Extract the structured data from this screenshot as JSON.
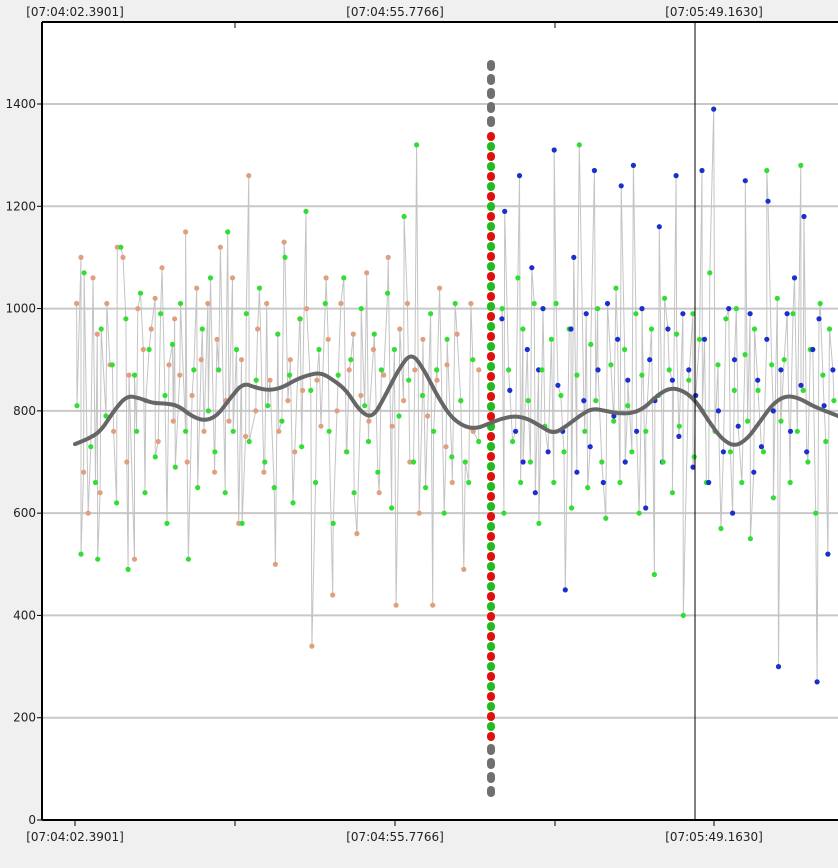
{
  "chart_data": {
    "type": "scatter",
    "title": "",
    "xlabel": "",
    "ylabel": "",
    "x_tick_labels": [
      "[07:04:02.3901]",
      "[07:04:55.7766]",
      "[07:05:49.1630]"
    ],
    "y_ticks": [
      0,
      200,
      400,
      600,
      800,
      1000,
      1200,
      1400
    ],
    "ylim": [
      0,
      1500
    ],
    "grid": true,
    "legend": "none",
    "marker_line_label": "[07:05:49.1630]",
    "series": [
      {
        "color": "#e0a080",
        "segment": "left",
        "y": [
          1010,
          1100,
          680,
          600,
          1060,
          950,
          640,
          1010,
          890,
          760,
          1120,
          1100,
          700,
          870,
          510,
          1000,
          920,
          820,
          960,
          1020,
          740,
          1080,
          890,
          780,
          980,
          870,
          1150,
          700,
          830,
          1040,
          900,
          760,
          1010,
          680,
          940,
          1120,
          820,
          780,
          1060,
          580,
          900,
          750,
          1260,
          800,
          960,
          680,
          1010,
          860,
          500,
          760,
          1130,
          820,
          900,
          720,
          980,
          840,
          1000,
          340,
          860,
          770,
          1060,
          940,
          440,
          800,
          1010,
          720,
          880,
          950,
          560,
          830,
          1070,
          780,
          920,
          640,
          870,
          1100,
          770,
          420,
          960,
          820,
          1010,
          700,
          880,
          600,
          940,
          790,
          420,
          860,
          1040,
          730,
          890,
          660,
          950,
          820,
          490,
          1010,
          760,
          880
        ]
      },
      {
        "color": "#33dd33",
        "segment": "left",
        "y": [
          810,
          520,
          1070,
          730,
          660,
          510,
          960,
          790,
          890,
          620,
          1120,
          980,
          490,
          870,
          760,
          1030,
          640,
          920,
          710,
          990,
          830,
          580,
          930,
          690,
          1010,
          760,
          510,
          880,
          650,
          960,
          800,
          1060,
          720,
          880,
          640,
          1150,
          760,
          920,
          580,
          990,
          740,
          860,
          1040,
          700,
          810,
          650,
          950,
          780,
          1100,
          870,
          620,
          980,
          730,
          1190,
          840,
          660,
          920,
          1010,
          760,
          580,
          870,
          1060,
          720,
          900,
          640,
          1000,
          810,
          740,
          950,
          680,
          880,
          1030,
          610,
          920,
          790,
          1180,
          860,
          700,
          1320,
          830,
          650,
          990,
          760,
          880,
          600,
          940,
          710,
          1010,
          820,
          700,
          660,
          900,
          740
        ]
      },
      {
        "color": "#33dd33",
        "segment": "right",
        "y": [
          1000,
          600,
          880,
          740,
          1060,
          660,
          960,
          820,
          700,
          1010,
          580,
          880,
          770,
          940,
          660,
          1010,
          830,
          720,
          960,
          610,
          870,
          1320,
          760,
          650,
          930,
          820,
          1000,
          700,
          590,
          890,
          780,
          1040,
          660,
          920,
          810,
          720,
          990,
          600,
          870,
          760,
          960,
          480,
          830,
          700,
          1020,
          880,
          640,
          950,
          770,
          400,
          860,
          990,
          710,
          940,
          800,
          660,
          1070,
          760,
          890,
          570,
          980,
          720,
          840,
          1000,
          660,
          910,
          780,
          550,
          960,
          840,
          720,
          1270,
          890,
          630,
          1020,
          780,
          900,
          660,
          990,
          760,
          1280,
          840,
          700,
          920,
          600,
          1010,
          870,
          740,
          960,
          820
        ]
      },
      {
        "color": "#1a2fcc",
        "segment": "right",
        "y": [
          980,
          1190,
          840,
          760,
          1260,
          700,
          920,
          1080,
          640,
          880,
          1000,
          720,
          1310,
          850,
          760,
          450,
          960,
          1100,
          680,
          820,
          990,
          730,
          1270,
          880,
          660,
          1010,
          790,
          940,
          1240,
          700,
          860,
          1280,
          760,
          1000,
          610,
          900,
          820,
          1160,
          700,
          960,
          860,
          1260,
          750,
          990,
          880,
          690,
          830,
          1270,
          940,
          660,
          1390,
          800,
          720,
          1000,
          600,
          900,
          770,
          1250,
          990,
          680,
          860,
          730,
          940,
          1210,
          800,
          300,
          880,
          990,
          760,
          1060,
          850,
          1180,
          720,
          920,
          270,
          980,
          810,
          520,
          880
        ]
      },
      {
        "color": "#666666",
        "name": "",
        "role": "smoothed",
        "y": [
          735,
          745,
          760,
          800,
          830,
          825,
          815,
          815,
          810,
          790,
          780,
          790,
          825,
          855,
          845,
          840,
          845,
          860,
          870,
          875,
          860,
          840,
          800,
          785,
          830,
          880,
          915,
          880,
          830,
          790,
          770,
          765,
          775,
          785,
          790,
          785,
          770,
          755,
          770,
          790,
          805,
          800,
          795,
          795,
          805,
          830,
          845,
          840,
          820,
          780,
          745,
          730,
          745,
          780,
          815,
          830,
          825,
          810,
          800,
          790
        ]
      }
    ],
    "vertical_stack": {
      "colors": [
        "#e01010",
        "#22bb22"
      ],
      "cap_color": "#707070"
    }
  },
  "colors": {
    "plot_bg": "#ffffff",
    "frame_bg": "#f0f0f0",
    "grid": "#c8c8c8",
    "connector": "#c4c4c4",
    "axis": "#000000"
  }
}
